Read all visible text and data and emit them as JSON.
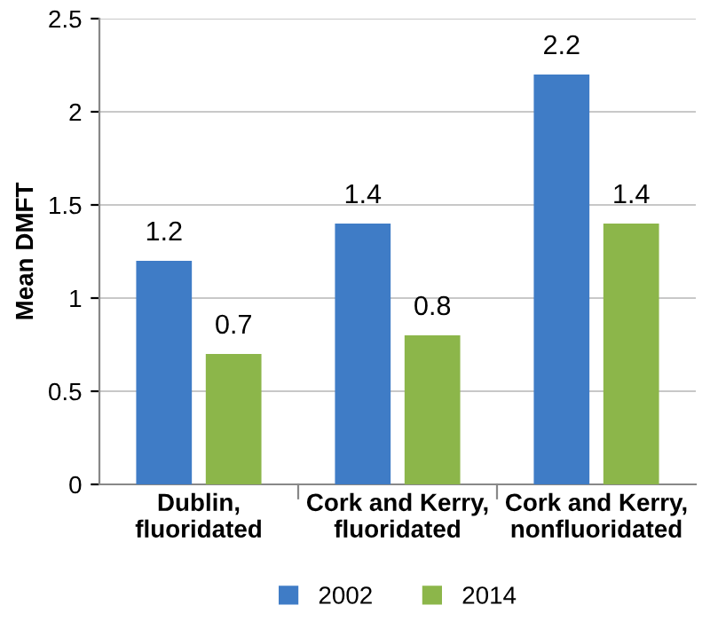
{
  "chart_data": {
    "type": "bar",
    "ylabel": "Mean DMFT",
    "categories": [
      "Dublin,\nfluoridated",
      "Cork and Kerry,\nfluoridated",
      "Cork and Kerry,\nnonfluoridated"
    ],
    "series": [
      {
        "name": "2002",
        "color": "#3f7cc6",
        "values": [
          1.2,
          1.4,
          2.2
        ]
      },
      {
        "name": "2014",
        "color": "#8cb64a",
        "values": [
          0.7,
          0.8,
          1.4
        ]
      }
    ],
    "ylim": [
      0,
      2.5
    ],
    "yticks": [
      0,
      0.5,
      1,
      1.5,
      2,
      2.5
    ],
    "grid": "y",
    "legend": "bottom",
    "data_labels": true
  }
}
